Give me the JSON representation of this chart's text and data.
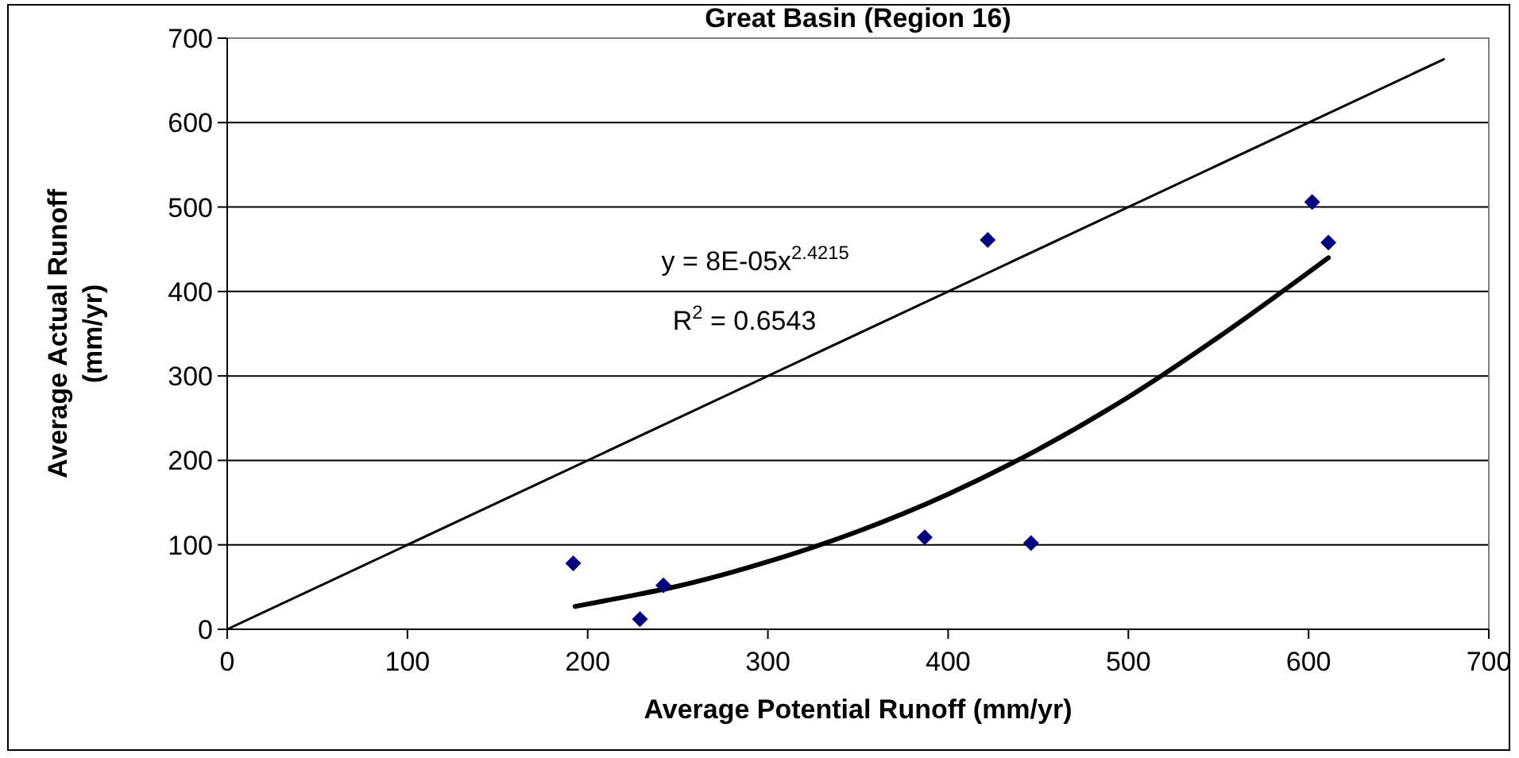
{
  "chart_data": {
    "type": "scatter",
    "title": "Great Basin (Region 16)",
    "xlabel": "Average Potential Runoff (mm/yr)",
    "ylabel": "Average Actual Runoff (mm/yr)",
    "xlim": [
      0,
      700
    ],
    "ylim": [
      0,
      700
    ],
    "xticks": [
      0,
      100,
      200,
      300,
      400,
      500,
      600,
      700
    ],
    "yticks": [
      0,
      100,
      200,
      300,
      400,
      500,
      600,
      700
    ],
    "grid": "y",
    "series": [
      {
        "color": "#000080",
        "marker": "diamond",
        "x": [
          192,
          229,
          242,
          387,
          422,
          446,
          602,
          611
        ],
        "values": [
          78,
          12,
          52,
          109,
          461,
          102,
          506,
          458
        ]
      },
      {
        "type": "line",
        "color": "#000000",
        "x": [
          193,
          220,
          250,
          300,
          350,
          400,
          450,
          500,
          550,
          611
        ],
        "values": [
          27,
          38,
          51,
          80,
          116,
          160,
          213,
          275,
          346,
          440
        ]
      },
      {
        "type": "line",
        "color": "#000000",
        "x": [
          0,
          675
        ],
        "values": [
          0,
          675
        ]
      }
    ],
    "annotations": [
      "y = 8E-05x$^{2.4215}$",
      "R$^{2}$ = 0.6543"
    ]
  }
}
